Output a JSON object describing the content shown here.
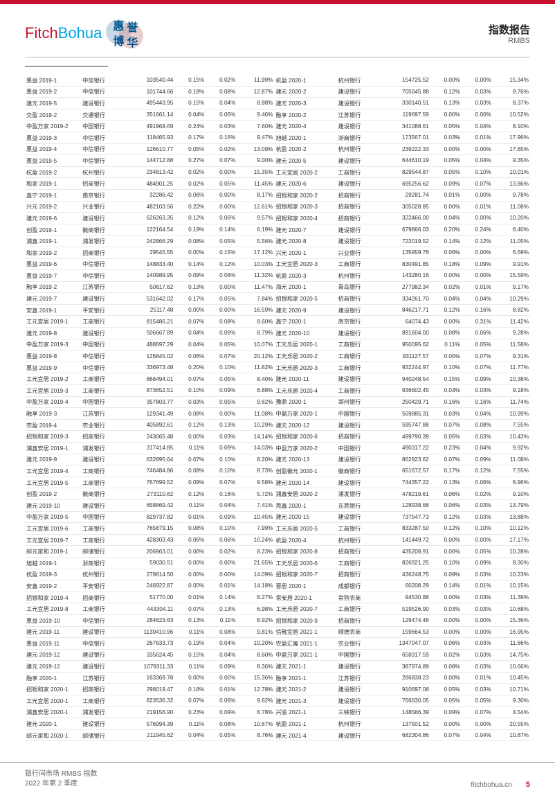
{
  "colors": {
    "accent_red": "#c8102e",
    "accent_blue": "#00a3e0",
    "text": "#333333",
    "border": "#e8e8e8",
    "header_border": "#bbbbbb"
  },
  "typography": {
    "body_font": "Microsoft YaHei",
    "table_fontsize_pt": 6,
    "logo_fontsize_pt": 16,
    "header_title_pt": 11
  },
  "logo": {
    "fitch": "Fitch",
    "bohua": "Bohua",
    "cn1": "惠",
    "cn2": "誉",
    "cn3": "博",
    "cn4": "华"
  },
  "header": {
    "title": "指数报告",
    "subtitle": "RMBS"
  },
  "footer": {
    "line1": "银行间市场 RMBS 指数",
    "line2": "2022 年第 2 季度",
    "site": "fitchbohua.cn",
    "page": "5"
  },
  "table": {
    "rows": [
      [
        "惠益 2019-1",
        "中信银行",
        "103540.44",
        "0.15%",
        "0.02%",
        "11.99%",
        "杭盈 2020-1",
        "杭州银行",
        "154725.52",
        "0.00%",
        "0.00%",
        "15.34%"
      ],
      [
        "惠益 2019-2",
        "中信银行",
        "101744.66",
        "0.18%",
        "0.08%",
        "12.87%",
        "建元 2020-2",
        "建设银行",
        "705045.88",
        "0.12%",
        "0.03%",
        "9.76%"
      ],
      [
        "建元 2019-5",
        "建设银行",
        "495443.95",
        "0.15%",
        "0.04%",
        "8.88%",
        "建元 2020-3",
        "建设银行",
        "330140.51",
        "0.13%",
        "0.03%",
        "8.37%"
      ],
      [
        "交盈 2019-2",
        "交通银行",
        "351661.14",
        "0.04%",
        "0.06%",
        "9.46%",
        "融享 2020-2",
        "江苏银行",
        "119697.59",
        "0.00%",
        "0.00%",
        "10.52%"
      ],
      [
        "中盈万家 2019-2",
        "中国银行",
        "491969.69",
        "0.24%",
        "0.03%",
        "7.60%",
        "建元 2020-4",
        "建设银行",
        "341088.61",
        "0.05%",
        "0.04%",
        "8.10%"
      ],
      [
        "惠益 2019-3",
        "中信银行",
        "118465.93",
        "0.17%",
        "0.16%",
        "9.47%",
        "旭越 2020-1",
        "浙商银行",
        "173567.01",
        "0.03%",
        "0.01%",
        "17.96%"
      ],
      [
        "惠益 2019-4",
        "中信银行",
        "126610.77",
        "0.05%",
        "0.02%",
        "13.09%",
        "杭盈 2020-2",
        "杭州银行",
        "239222.33",
        "0.00%",
        "0.00%",
        "17.65%"
      ],
      [
        "惠益 2019-5",
        "中信银行",
        "144712.88",
        "0.27%",
        "0.07%",
        "9.00%",
        "建元 2020-5",
        "建设银行",
        "644610.19",
        "0.05%",
        "0.04%",
        "9.35%"
      ],
      [
        "杭盈 2019-2",
        "杭州银行",
        "234813.42",
        "0.02%",
        "0.00%",
        "15.35%",
        "工元宜居 2020-2",
        "工商银行",
        "829544.87",
        "0.05%",
        "0.10%",
        "10.01%"
      ],
      [
        "和家 2019-1",
        "招商银行",
        "484901.25",
        "0.02%",
        "0.05%",
        "11.45%",
        "建元 2020-6",
        "建设银行",
        "695256.62",
        "0.09%",
        "0.07%",
        "13.86%"
      ],
      [
        "鑫宁 2019-1",
        "南京银行",
        "32286.42",
        "0.06%",
        "0.00%",
        "8.17%",
        "招银和家 2020-2",
        "招商银行",
        "29281.74",
        "0.01%",
        "0.00%",
        "9.78%"
      ],
      [
        "兴元 2019-2",
        "兴业银行",
        "482103.56",
        "0.22%",
        "0.00%",
        "12.61%",
        "招银和家 2020-3",
        "招商银行",
        "305028.85",
        "0.00%",
        "0.01%",
        "11.08%"
      ],
      [
        "建元 2019-6",
        "建设银行",
        "626263.35",
        "0.12%",
        "0.06%",
        "9.57%",
        "招银和家 2020-4",
        "招商银行",
        "322466.00",
        "0.04%",
        "0.00%",
        "10.20%"
      ],
      [
        "创盈 2019-1",
        "徽商银行",
        "122164.54",
        "0.19%",
        "0.14%",
        "6.19%",
        "建元 2020-7",
        "建设银行",
        "679866.03",
        "0.20%",
        "0.24%",
        "8.40%"
      ],
      [
        "浦鑫 2019-1",
        "浦发银行",
        "242866.29",
        "0.08%",
        "0.05%",
        "5.56%",
        "建元 2020-8",
        "建设银行",
        "722019.52",
        "0.14%",
        "0.12%",
        "11.05%"
      ],
      [
        "和家 2019-2",
        "招商银行",
        "29545.55",
        "0.00%",
        "0.15%",
        "17.12%",
        "兴元 2020-1",
        "兴业银行",
        "135959.78",
        "0.06%",
        "0.00%",
        "6.69%"
      ],
      [
        "惠益 2019-6",
        "中信银行",
        "148833.40",
        "0.14%",
        "0.12%",
        "10.03%",
        "工元宜居 2020-3",
        "工商银行",
        "830491.85",
        "0.18%",
        "0.09%",
        "9.91%"
      ],
      [
        "惠益 2019-7",
        "中信银行",
        "140989.95",
        "0.09%",
        "0.08%",
        "11.32%",
        "杭盈 2020-3",
        "杭州银行",
        "143280.16",
        "0.00%",
        "0.00%",
        "15.59%"
      ],
      [
        "融享 2019-2",
        "江苏银行",
        "50617.62",
        "0.13%",
        "0.00%",
        "11.47%",
        "海元 2020-1",
        "青岛银行",
        "277982.34",
        "0.02%",
        "0.01%",
        "9.17%"
      ],
      [
        "建元 2019-7",
        "建设银行",
        "531642.02",
        "0.17%",
        "0.05%",
        "7.84%",
        "招银和家 2020-5",
        "招商银行",
        "334261.70",
        "0.04%",
        "0.04%",
        "10.29%"
      ],
      [
        "安鑫 2019-1",
        "平安银行",
        "25117.48",
        "0.00%",
        "0.00%",
        "16.59%",
        "建元 2020-9",
        "建设银行",
        "846217.71",
        "0.12%",
        "0.16%",
        "8.82%"
      ],
      [
        "工元宜居 2019-1",
        "工商银行",
        "815486.21",
        "0.07%",
        "0.08%",
        "8.60%",
        "鑫宁 2020-1",
        "南京银行",
        "64074.43",
        "0.00%",
        "0.31%",
        "11.42%"
      ],
      [
        "建元 2019-8",
        "建设银行",
        "506667.89",
        "0.04%",
        "0.09%",
        "8.79%",
        "建元 2020-10",
        "建设银行",
        "891604.00",
        "0.08%",
        "0.06%",
        "9.28%"
      ],
      [
        "中盈万家 2019-3",
        "中国银行",
        "488597.29",
        "0.04%",
        "0.05%",
        "10.07%",
        "工元乐居 2020-1",
        "工商银行",
        "950095.62",
        "0.11%",
        "0.05%",
        "11.58%"
      ],
      [
        "惠益 2019-8",
        "中信银行",
        "126845.02",
        "0.06%",
        "0.07%",
        "20.12%",
        "工元乐居 2020-2",
        "工商银行",
        "931127.57",
        "0.05%",
        "0.07%",
        "9.31%"
      ],
      [
        "惠益 2019-9",
        "中信银行",
        "336973.48",
        "0.20%",
        "0.10%",
        "11.82%",
        "工元乐居 2020-3",
        "工商银行",
        "932244.97",
        "0.10%",
        "0.07%",
        "11.77%"
      ],
      [
        "工元宜居 2019-2",
        "工商银行",
        "866494.01",
        "0.07%",
        "0.05%",
        "8.40%",
        "建元 2020-11",
        "建设银行",
        "940248.54",
        "0.15%",
        "0.09%",
        "10.38%"
      ],
      [
        "工元宜居 2019-3",
        "工商银行",
        "873652.51",
        "0.10%",
        "0.09%",
        "8.88%",
        "工元乐居 2020-4",
        "工商银行",
        "936602.45",
        "0.03%",
        "0.03%",
        "9.18%"
      ],
      [
        "中盈万家 2019-4",
        "中国银行",
        "357803.77",
        "0.03%",
        "0.05%",
        "9.62%",
        "豫鼎 2020-1",
        "郑州银行",
        "250429.71",
        "0.16%",
        "0.16%",
        "11.74%"
      ],
      [
        "融享 2019-3",
        "江苏银行",
        "129341.49",
        "0.08%",
        "0.00%",
        "11.08%",
        "中盈万家 2020-1",
        "中国银行",
        "569885.31",
        "0.03%",
        "0.04%",
        "10.99%"
      ],
      [
        "农盈 2019-4",
        "农业银行",
        "405892.61",
        "0.12%",
        "0.13%",
        "10.29%",
        "建元 2020-12",
        "建设银行",
        "595747.88",
        "0.07%",
        "0.08%",
        "7.55%"
      ],
      [
        "招银和家 2019-3",
        "招商银行",
        "243065.48",
        "0.00%",
        "0.03%",
        "14.14%",
        "招银和家 2020-6",
        "招商银行",
        "499790.39",
        "0.05%",
        "0.03%",
        "10.43%"
      ],
      [
        "浦鑫安居 2019-1",
        "浦发银行",
        "317414.85",
        "0.11%",
        "0.09%",
        "14.03%",
        "中盈万家 2020-2",
        "中国银行",
        "490317.22",
        "0.23%",
        "0.04%",
        "9.92%"
      ],
      [
        "建元 2019-9",
        "建设银行",
        "632895.64",
        "0.07%",
        "0.10%",
        "8.20%",
        "建元 2020-13",
        "建设银行",
        "862923.62",
        "0.07%",
        "0.09%",
        "11.08%"
      ],
      [
        "工元宜居 2019-4",
        "工商银行",
        "746484.86",
        "0.08%",
        "0.10%",
        "8.73%",
        "创盈徽元 2020-1",
        "徽商银行",
        "651672.57",
        "0.17%",
        "0.12%",
        "7.55%"
      ],
      [
        "工元宜居 2019-5",
        "工商银行",
        "767699.52",
        "0.09%",
        "0.07%",
        "9.58%",
        "建元 2020-14",
        "建设银行",
        "744357.22",
        "0.13%",
        "0.06%",
        "8.96%"
      ],
      [
        "创盈 2019-2",
        "徽商银行",
        "273110.62",
        "0.12%",
        "0.16%",
        "5.72%",
        "浦鑫安居 2020-2",
        "浦发银行",
        "478219.61",
        "0.06%",
        "0.02%",
        "9.10%"
      ],
      [
        "建元 2019-10",
        "建设银行",
        "658869.42",
        "0.11%",
        "0.04%",
        "7.41%",
        "莞鑫 2020-1",
        "东莞银行",
        "128938.68",
        "0.06%",
        "0.03%",
        "13.79%"
      ],
      [
        "中盈万家 2019-5",
        "中国银行",
        "829737.82",
        "0.01%",
        "0.09%",
        "10.45%",
        "建元 2020-15",
        "建设银行",
        "737547.73",
        "0.12%",
        "0.03%",
        "13.88%"
      ],
      [
        "工元宜居 2019-6",
        "工商银行",
        "765879.15",
        "0.08%",
        "0.10%",
        "7.99%",
        "工元乐居 2020-5",
        "工商银行",
        "833287.50",
        "0.12%",
        "0.10%",
        "10.12%"
      ],
      [
        "工元宜居 2019-7",
        "工商银行",
        "428303.43",
        "0.06%",
        "0.06%",
        "10.24%",
        "杭盈 2020-4",
        "杭州银行",
        "141449.72",
        "0.00%",
        "0.00%",
        "17.17%"
      ],
      [
        "邮元家和 2019-1",
        "邮储银行",
        "206963.01",
        "0.06%",
        "0.02%",
        "8.23%",
        "招银和家 2020-8",
        "招商银行",
        "435208.91",
        "0.06%",
        "0.05%",
        "10.28%"
      ],
      [
        "旭越 2019-1",
        "浙商银行",
        "59030.51",
        "0.00%",
        "0.00%",
        "21.65%",
        "工元乐居 2020-6",
        "工商银行",
        "826921.25",
        "0.10%",
        "0.09%",
        "8.30%"
      ],
      [
        "杭盈 2019-3",
        "杭州银行",
        "279614.50",
        "0.00%",
        "0.00%",
        "14.09%",
        "招银和家 2020-7",
        "招商银行",
        "436248.75",
        "0.09%",
        "0.03%",
        "10.23%"
      ],
      [
        "安鑫 2019-2",
        "平安银行",
        "246922.87",
        "0.00%",
        "0.01%",
        "14.18%",
        "蓉居 2020-1",
        "成都银行",
        "60208.29",
        "0.14%",
        "0.01%",
        "10.15%"
      ],
      [
        "招银和家 2019-4",
        "招商银行",
        "51770.00",
        "0.01%",
        "0.14%",
        "8.27%",
        "常安居 2020-1",
        "常熟农商",
        "94530.88",
        "0.00%",
        "0.03%",
        "11.39%"
      ],
      [
        "工元宜居 2019-8",
        "工商银行",
        "443304.11",
        "0.07%",
        "0.13%",
        "6.98%",
        "工元乐居 2020-7",
        "工商银行",
        "519526.90",
        "0.03%",
        "0.03%",
        "10.68%"
      ],
      [
        "惠益 2019-10",
        "中信银行",
        "284623.63",
        "0.13%",
        "0.11%",
        "8.92%",
        "招银和家 2020-9",
        "招商银行",
        "129474.46",
        "0.00%",
        "0.00%",
        "15.36%"
      ],
      [
        "建元 2019-11",
        "建设银行",
        "1139410.96",
        "0.11%",
        "0.08%",
        "9.81%",
        "信融宜居 2021-1",
        "顺德农商",
        "159664.53",
        "0.00%",
        "0.00%",
        "16.95%"
      ],
      [
        "惠益 2019-11",
        "中信银行",
        "267633.73",
        "0.19%",
        "0.04%",
        "10.20%",
        "农盈汇寓 2021-1",
        "农业银行",
        "1347047.07",
        "0.06%",
        "0.03%",
        "11.66%"
      ],
      [
        "建元 2019-12",
        "建设银行",
        "335624.45",
        "0.15%",
        "0.04%",
        "8.60%",
        "中盈万家 2021-1",
        "中国银行",
        "658317.59",
        "0.02%",
        "0.03%",
        "14.75%"
      ],
      [
        "建元 2019-12",
        "建设银行",
        "1079311.33",
        "0.11%",
        "0.09%",
        "8.36%",
        "建元 2021-1",
        "建设银行",
        "387974.89",
        "0.08%",
        "0.03%",
        "10.66%"
      ],
      [
        "融享 2020-1",
        "江苏银行",
        "163369.78",
        "0.00%",
        "0.00%",
        "15.36%",
        "融享 2021-1",
        "江苏银行",
        "286838.23",
        "0.00%",
        "0.01%",
        "10.45%"
      ],
      [
        "招银和家 2020-1",
        "招商银行",
        "298019.47",
        "0.18%",
        "0.01%",
        "12.78%",
        "建元 2021-2",
        "建设银行",
        "910697.08",
        "0.05%",
        "0.03%",
        "10.71%"
      ],
      [
        "工元宜居 2020-1",
        "工商银行",
        "823536.32",
        "0.07%",
        "0.06%",
        "9.62%",
        "建元 2021-3",
        "建设银行",
        "766630.05",
        "0.05%",
        "0.05%",
        "9.30%"
      ],
      [
        "浦鑫安居 2020-1",
        "浦发银行",
        "219156.90",
        "0.23%",
        "0.09%",
        "6.78%",
        "兴渝 2021-1",
        "三峡银行",
        "148586.39",
        "0.09%",
        "0.07%",
        "4.54%"
      ],
      [
        "建元 2020-1",
        "建设银行",
        "576994.39",
        "0.11%",
        "0.08%",
        "10.67%",
        "杭盈 2021-1",
        "杭州银行",
        "137501.52",
        "0.00%",
        "0.00%",
        "20.55%"
      ],
      [
        "邮元家和 2020-1",
        "邮储银行",
        "211945.62",
        "0.04%",
        "0.05%",
        "8.76%",
        "建元 2021-4",
        "建设银行",
        "682304.86",
        "0.07%",
        "0.04%",
        "10.87%"
      ]
    ]
  }
}
